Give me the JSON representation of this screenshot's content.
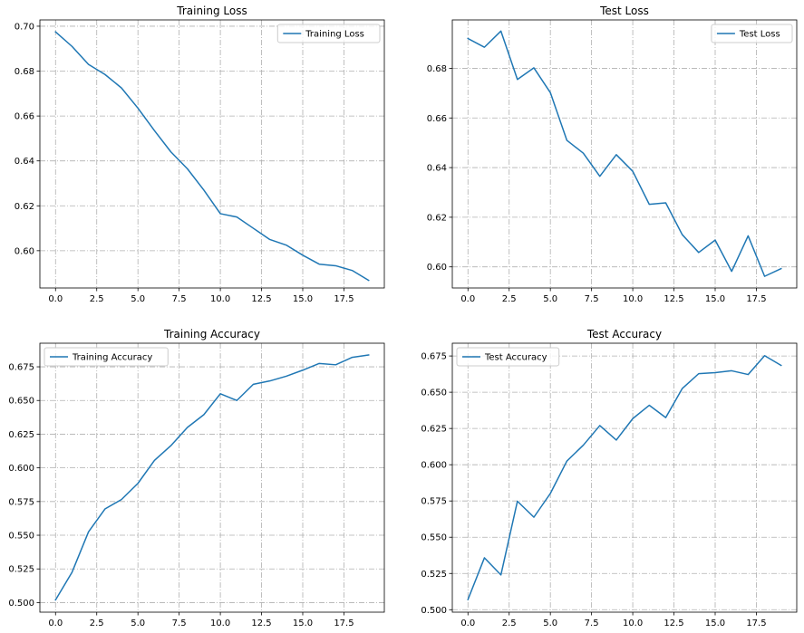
{
  "chart_data": [
    {
      "type": "line",
      "title": "Training Loss",
      "xlabel": "",
      "ylabel": "",
      "xlim": [
        -0.95,
        19.95
      ],
      "ylim": [
        0.5834,
        0.7028
      ],
      "xticks": [
        0,
        2.5,
        5,
        7.5,
        10,
        12.5,
        15,
        17.5
      ],
      "xtick_labels": [
        "0.0",
        "2.5",
        "5.0",
        "7.5",
        "10.0",
        "12.5",
        "15.0",
        "17.5"
      ],
      "yticks": [
        0.6,
        0.62,
        0.64,
        0.66,
        0.68,
        0.7
      ],
      "ytick_labels": [
        "0.60",
        "0.62",
        "0.64",
        "0.66",
        "0.68",
        "0.70"
      ],
      "grid": true,
      "legend": "upper right",
      "x": [
        0,
        1,
        2,
        3,
        4,
        5,
        6,
        7,
        8,
        9,
        10,
        11,
        12,
        13,
        14,
        15,
        16,
        17,
        18,
        19
      ],
      "series": [
        {
          "name": "Training Loss",
          "color": "#1f77b4",
          "values": [
            0.6975,
            0.691,
            0.683,
            0.6785,
            0.6725,
            0.6635,
            0.6535,
            0.644,
            0.6365,
            0.627,
            0.6165,
            0.615,
            0.61,
            0.605,
            0.6025,
            0.598,
            0.594,
            0.5933,
            0.5912,
            0.5868
          ]
        }
      ]
    },
    {
      "type": "line",
      "title": "Test Loss",
      "xlabel": "",
      "ylabel": "",
      "xlim": [
        -0.95,
        19.95
      ],
      "ylim": [
        0.5915,
        0.6995
      ],
      "xticks": [
        0,
        2.5,
        5,
        7.5,
        10,
        12.5,
        15,
        17.5
      ],
      "xtick_labels": [
        "0.0",
        "2.5",
        "5.0",
        "7.5",
        "10.0",
        "12.5",
        "15.0",
        "17.5"
      ],
      "yticks": [
        0.6,
        0.62,
        0.64,
        0.66,
        0.68
      ],
      "ytick_labels": [
        "0.60",
        "0.62",
        "0.64",
        "0.66",
        "0.68"
      ],
      "grid": true,
      "legend": "upper right",
      "x": [
        0,
        1,
        2,
        3,
        4,
        5,
        6,
        7,
        8,
        9,
        10,
        11,
        12,
        13,
        14,
        15,
        16,
        17,
        18,
        19
      ],
      "series": [
        {
          "name": "Test Loss",
          "color": "#1f77b4",
          "values": [
            0.692,
            0.6885,
            0.695,
            0.6755,
            0.6802,
            0.6702,
            0.651,
            0.6458,
            0.6365,
            0.6452,
            0.6385,
            0.6252,
            0.6258,
            0.613,
            0.6058,
            0.6108,
            0.5982,
            0.6125,
            0.5962,
            0.5993
          ]
        }
      ]
    },
    {
      "type": "line",
      "title": "Training Accuracy",
      "xlabel": "",
      "ylabel": "",
      "xlim": [
        -0.95,
        19.95
      ],
      "ylim": [
        0.4929,
        0.6925
      ],
      "xticks": [
        0,
        2.5,
        5,
        7.5,
        10,
        12.5,
        15,
        17.5
      ],
      "xtick_labels": [
        "0.0",
        "2.5",
        "5.0",
        "7.5",
        "10.0",
        "12.5",
        "15.0",
        "17.5"
      ],
      "yticks": [
        0.5,
        0.525,
        0.55,
        0.575,
        0.6,
        0.625,
        0.65,
        0.675
      ],
      "ytick_labels": [
        "0.500",
        "0.525",
        "0.550",
        "0.575",
        "0.600",
        "0.625",
        "0.650",
        "0.675"
      ],
      "grid": true,
      "legend": "upper left",
      "x": [
        0,
        1,
        2,
        3,
        4,
        5,
        6,
        7,
        8,
        9,
        10,
        11,
        12,
        13,
        14,
        15,
        16,
        17,
        18,
        19
      ],
      "series": [
        {
          "name": "Training Accuracy",
          "color": "#1f77b4",
          "values": [
            0.502,
            0.5225,
            0.5525,
            0.5695,
            0.5765,
            0.5885,
            0.6055,
            0.6165,
            0.63,
            0.6395,
            0.655,
            0.65,
            0.662,
            0.6645,
            0.668,
            0.6725,
            0.6775,
            0.6765,
            0.682,
            0.6838
          ]
        }
      ]
    },
    {
      "type": "line",
      "title": "Test Accuracy",
      "xlabel": "",
      "ylabel": "",
      "xlim": [
        -0.95,
        19.95
      ],
      "ylim": [
        0.4983,
        0.6838
      ],
      "xticks": [
        0,
        2.5,
        5,
        7.5,
        10,
        12.5,
        15,
        17.5
      ],
      "xtick_labels": [
        "0.0",
        "2.5",
        "5.0",
        "7.5",
        "10.0",
        "12.5",
        "15.0",
        "17.5"
      ],
      "yticks": [
        0.5,
        0.525,
        0.55,
        0.575,
        0.6,
        0.625,
        0.65,
        0.675
      ],
      "ytick_labels": [
        "0.500",
        "0.525",
        "0.550",
        "0.575",
        "0.600",
        "0.625",
        "0.650",
        "0.675"
      ],
      "grid": true,
      "legend": "upper left",
      "x": [
        0,
        1,
        2,
        3,
        4,
        5,
        6,
        7,
        8,
        9,
        10,
        11,
        12,
        13,
        14,
        15,
        16,
        17,
        18,
        19
      ],
      "series": [
        {
          "name": "Test Accuracy",
          "color": "#1f77b4",
          "values": [
            0.507,
            0.5358,
            0.524,
            0.5748,
            0.5638,
            0.5802,
            0.6025,
            0.6135,
            0.627,
            0.617,
            0.6318,
            0.641,
            0.6325,
            0.6525,
            0.6628,
            0.6635,
            0.6648,
            0.6622,
            0.6752,
            0.6685
          ]
        }
      ]
    }
  ]
}
